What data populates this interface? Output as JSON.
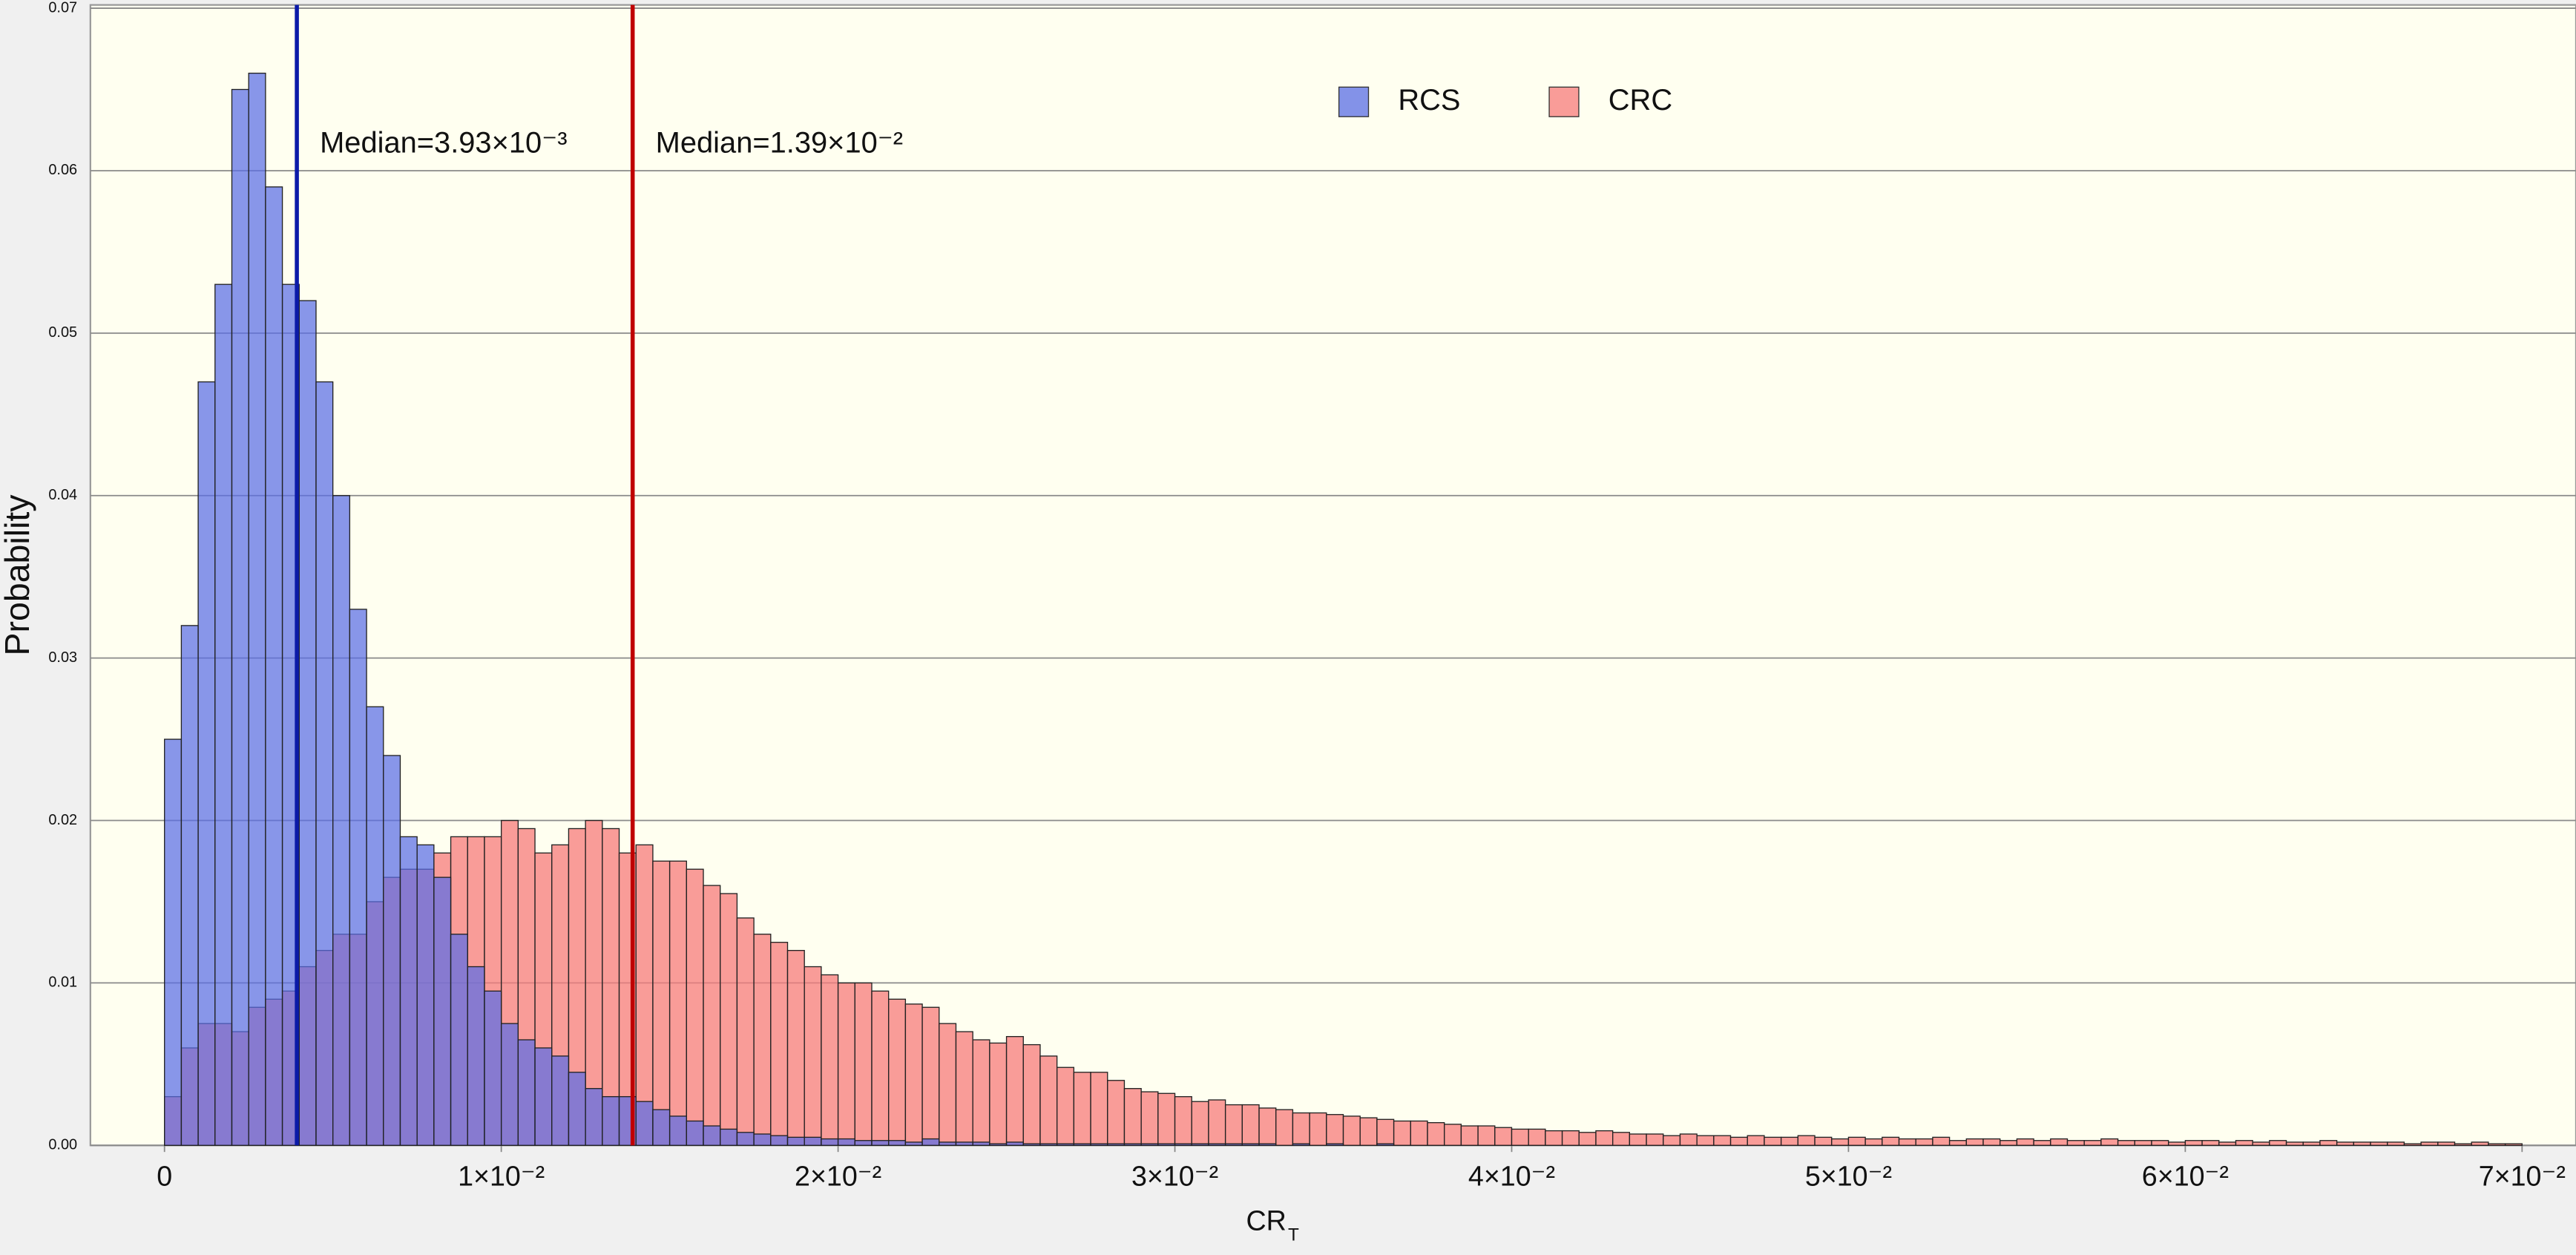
{
  "chart_data": {
    "type": "histogram",
    "y_label": "Probability",
    "x_label": {
      "text": "CR",
      "subscript": "T"
    },
    "bins": [
      0,
      0.0005,
      0.001,
      0.0015,
      0.002,
      0.0025,
      0.003,
      0.0035,
      0.004,
      0.0045,
      0.005,
      0.0055,
      0.006,
      0.0065,
      0.007,
      0.0075,
      0.008,
      0.0085,
      0.009,
      0.0095,
      0.01,
      0.0105,
      0.011,
      0.0115,
      0.012,
      0.0125,
      0.013,
      0.0135,
      0.014,
      0.0145,
      0.015,
      0.0155,
      0.016,
      0.0165,
      0.017,
      0.0175,
      0.018,
      0.0185,
      0.019,
      0.0195,
      0.02,
      0.0205,
      0.021,
      0.0215,
      0.022,
      0.0225,
      0.023,
      0.0235,
      0.024,
      0.0245,
      0.025,
      0.0255,
      0.026,
      0.0265,
      0.027,
      0.0275,
      0.028,
      0.0285,
      0.029,
      0.0295,
      0.03,
      0.0305,
      0.031,
      0.0315,
      0.032,
      0.0325,
      0.033,
      0.0335,
      0.034,
      0.0345,
      0.035,
      0.0355,
      0.036,
      0.0365,
      0.037,
      0.0375,
      0.038,
      0.0385,
      0.039,
      0.0395,
      0.04,
      0.0405,
      0.041,
      0.0415,
      0.042,
      0.0425,
      0.043,
      0.0435,
      0.044,
      0.0445,
      0.045,
      0.0455,
      0.046,
      0.0465,
      0.047,
      0.0475,
      0.048,
      0.0485,
      0.049,
      0.0495,
      0.05,
      0.0505,
      0.051,
      0.0515,
      0.052,
      0.0525,
      0.053,
      0.0535,
      0.054,
      0.0545,
      0.055,
      0.0555,
      0.056,
      0.0565,
      0.057,
      0.0575,
      0.058,
      0.0585,
      0.059,
      0.0595,
      0.06,
      0.0605,
      0.061,
      0.0615,
      0.062,
      0.0625,
      0.063,
      0.0635,
      0.064,
      0.0645,
      0.065,
      0.0655,
      0.066,
      0.0665,
      0.067,
      0.0675,
      0.068,
      0.0685,
      0.069,
      0.0695,
      0.07
    ],
    "series": [
      {
        "name": "RCS",
        "color": "#5a6ee6",
        "values": [
          0.025,
          0.032,
          0.047,
          0.053,
          0.065,
          0.066,
          0.059,
          0.053,
          0.052,
          0.047,
          0.04,
          0.033,
          0.027,
          0.024,
          0.019,
          0.0185,
          0.0165,
          0.013,
          0.011,
          0.0095,
          0.0075,
          0.0065,
          0.006,
          0.0055,
          0.0045,
          0.0035,
          0.003,
          0.003,
          0.0027,
          0.0022,
          0.0018,
          0.0015,
          0.0012,
          0.001,
          0.0008,
          0.0007,
          0.0006,
          0.0005,
          0.0005,
          0.0004,
          0.0004,
          0.0003,
          0.0003,
          0.0003,
          0.0002,
          0.0004,
          0.0002,
          0.0002,
          0.0002,
          0.0001,
          0.0002,
          0.0001,
          0.0001,
          0.0001,
          0.0001,
          0.0001,
          0.0001,
          0.0001,
          0.0001,
          0.0001,
          0.0001,
          0.0001,
          0.0001,
          0.0001,
          0.0001,
          0.0001,
          0,
          0.0001,
          0,
          0.0001,
          0,
          0,
          0.0001,
          0,
          0,
          0,
          0,
          0,
          0,
          0,
          0,
          0,
          0,
          0,
          0,
          0,
          0,
          0,
          0,
          0,
          0,
          0,
          0,
          0,
          0,
          0,
          0,
          0,
          0,
          0,
          0,
          0,
          0,
          0,
          0,
          0,
          0,
          0,
          0,
          0,
          0,
          0,
          0,
          0,
          0,
          0,
          0,
          0,
          0,
          0,
          0,
          0,
          0,
          0,
          0,
          0,
          0,
          0,
          0,
          0,
          0,
          0,
          0,
          0,
          0,
          0,
          0,
          0,
          0,
          0
        ]
      },
      {
        "name": "CRC",
        "color": "#f77b7b",
        "values": [
          0.003,
          0.006,
          0.0075,
          0.0075,
          0.007,
          0.0085,
          0.009,
          0.0095,
          0.011,
          0.012,
          0.013,
          0.013,
          0.015,
          0.0165,
          0.017,
          0.017,
          0.018,
          0.019,
          0.019,
          0.019,
          0.02,
          0.0195,
          0.018,
          0.0185,
          0.0195,
          0.02,
          0.0195,
          0.018,
          0.0185,
          0.0175,
          0.0175,
          0.017,
          0.016,
          0.0155,
          0.014,
          0.013,
          0.0125,
          0.012,
          0.011,
          0.0105,
          0.01,
          0.01,
          0.0095,
          0.009,
          0.0087,
          0.0085,
          0.0075,
          0.007,
          0.0065,
          0.0063,
          0.0067,
          0.0062,
          0.0055,
          0.0048,
          0.0045,
          0.0045,
          0.004,
          0.0035,
          0.0033,
          0.0032,
          0.003,
          0.0027,
          0.0028,
          0.0025,
          0.0025,
          0.0023,
          0.0022,
          0.002,
          0.002,
          0.0019,
          0.0018,
          0.0017,
          0.0016,
          0.0015,
          0.0015,
          0.0014,
          0.0013,
          0.0012,
          0.0012,
          0.0011,
          0.001,
          0.001,
          0.0009,
          0.0009,
          0.0008,
          0.0009,
          0.0008,
          0.0007,
          0.0007,
          0.0006,
          0.0007,
          0.0006,
          0.0006,
          0.0005,
          0.0006,
          0.0005,
          0.0005,
          0.0006,
          0.0005,
          0.0004,
          0.0005,
          0.0004,
          0.0005,
          0.0004,
          0.0004,
          0.0005,
          0.0003,
          0.0004,
          0.0004,
          0.0003,
          0.0004,
          0.0003,
          0.0004,
          0.0003,
          0.0003,
          0.0004,
          0.0003,
          0.0003,
          0.0003,
          0.0002,
          0.0003,
          0.0003,
          0.0002,
          0.0003,
          0.0002,
          0.0003,
          0.0002,
          0.0002,
          0.0003,
          0.0002,
          0.0002,
          0.0002,
          0.0002,
          0.0001,
          0.0002,
          0.0002,
          0.0001,
          0.0002,
          0.0001,
          0.0001
        ]
      }
    ],
    "xlim": [
      -0.0022,
      0.0716
    ],
    "ylim": [
      0,
      0.07
    ],
    "xticks": [
      0,
      {
        "value": 0.01,
        "label": "1×10⁻²"
      },
      {
        "value": 0.02,
        "label": "2×10⁻²"
      },
      {
        "value": 0.03,
        "label": "3×10⁻²"
      },
      {
        "value": 0.04,
        "label": "4×10⁻²"
      },
      {
        "value": 0.05,
        "label": "5×10⁻²"
      },
      {
        "value": 0.06,
        "label": "6×10⁻²"
      },
      {
        "value": 0.07,
        "label": "7×10⁻²"
      }
    ],
    "yticks": [
      {
        "value": 0,
        "label": "0.00"
      },
      0.01,
      0.02,
      0.03,
      0.04,
      0.05,
      0.06,
      0.07
    ],
    "grid": true,
    "legend": "top-center",
    "annotations": [
      {
        "text": "Median=3.93×10⁻³",
        "x": 0.00393,
        "color": "#0b1aa8"
      },
      {
        "text": "Median=1.39×10⁻²",
        "x": 0.0139,
        "color": "#c00000"
      }
    ]
  }
}
